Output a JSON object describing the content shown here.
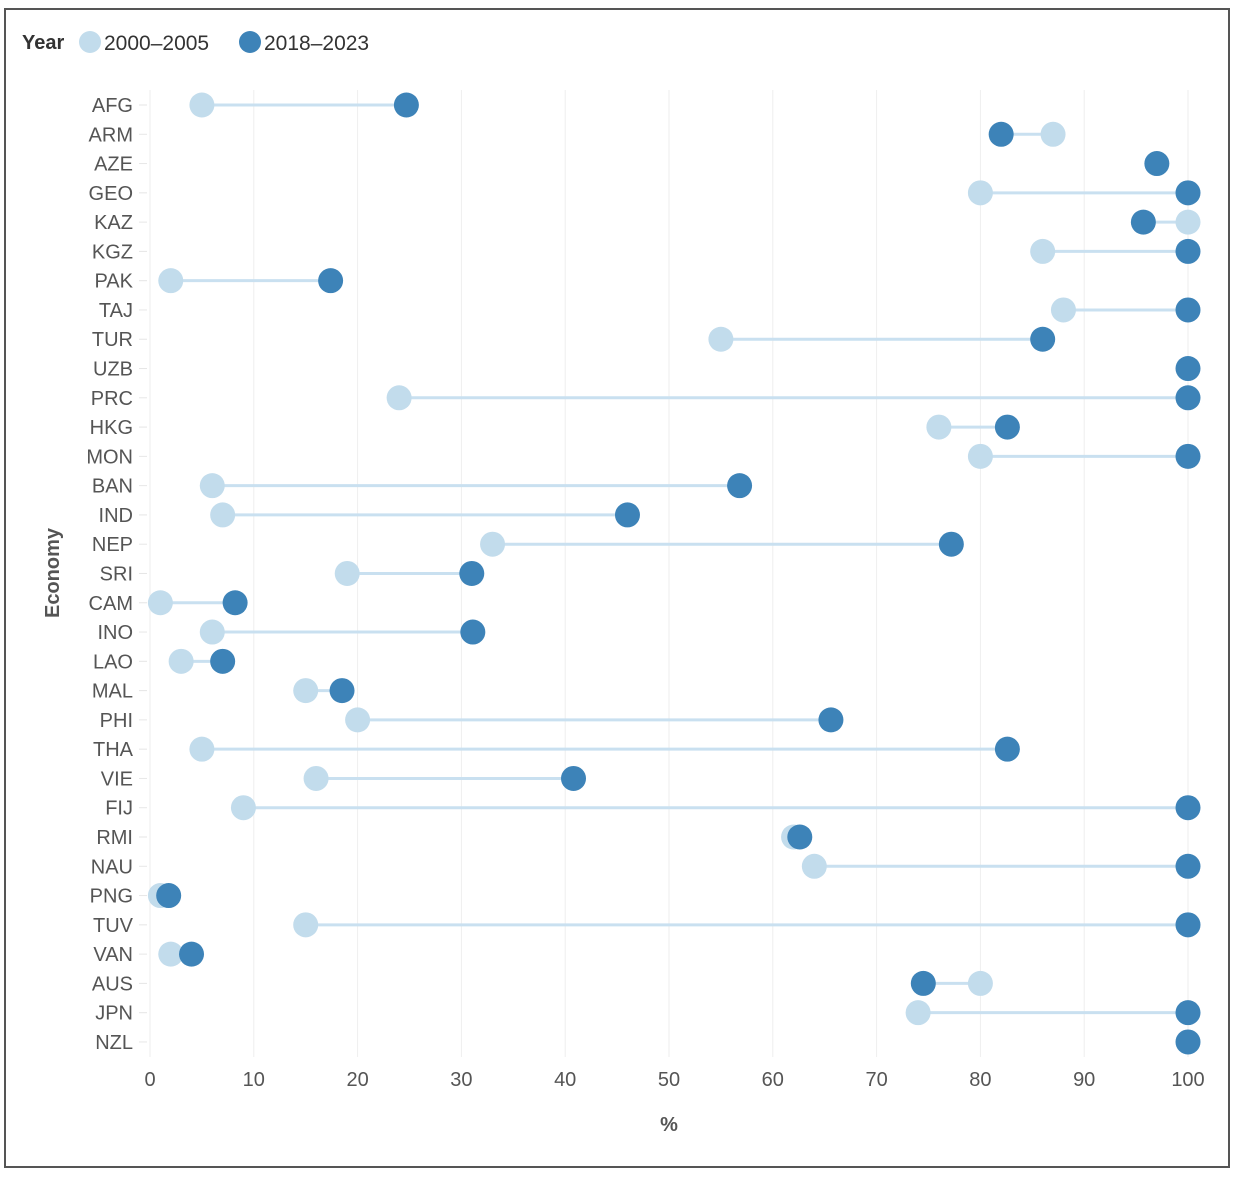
{
  "chart_data": {
    "type": "dumbbell",
    "title": "",
    "xlabel": "%",
    "ylabel": "Economy",
    "xlim": [
      0,
      100
    ],
    "xticks": [
      0,
      10,
      20,
      30,
      40,
      50,
      60,
      70,
      80,
      90,
      100
    ],
    "grid": true,
    "legend": {
      "title": "Year",
      "placement": "top-left",
      "entries": [
        {
          "name": "2000–2005",
          "color": "#c2dcec"
        },
        {
          "name": "2018–2023",
          "color": "#3d83b8"
        }
      ]
    },
    "connector_color": "#c9e0f0",
    "categories": [
      "AFG",
      "ARM",
      "AZE",
      "GEO",
      "KAZ",
      "KGZ",
      "PAK",
      "TAJ",
      "TUR",
      "UZB",
      "PRC",
      "HKG",
      "MON",
      "BAN",
      "IND",
      "NEP",
      "SRI",
      "CAM",
      "INO",
      "LAO",
      "MAL",
      "PHI",
      "THA",
      "VIE",
      "FIJ",
      "RMI",
      "NAU",
      "PNG",
      "TUV",
      "VAN",
      "AUS",
      "JPN",
      "NZL"
    ],
    "series": [
      {
        "name": "2000–2005",
        "values": [
          5,
          87,
          null,
          80,
          100,
          86,
          2,
          88,
          55,
          null,
          24,
          76,
          80,
          6,
          7,
          33,
          19,
          1,
          6,
          3,
          15,
          20,
          5,
          16,
          9,
          62,
          64,
          1,
          15,
          2,
          80,
          74,
          null
        ]
      },
      {
        "name": "2018–2023",
        "values": [
          24.7,
          82,
          97,
          100,
          95.7,
          100,
          17.4,
          100,
          86,
          100,
          100,
          82.6,
          100,
          56.8,
          46,
          77.2,
          31,
          8.2,
          31.1,
          7,
          18.5,
          65.6,
          82.6,
          40.8,
          100,
          62.6,
          100,
          1.8,
          100,
          4,
          74.5,
          100,
          100
        ]
      }
    ]
  }
}
